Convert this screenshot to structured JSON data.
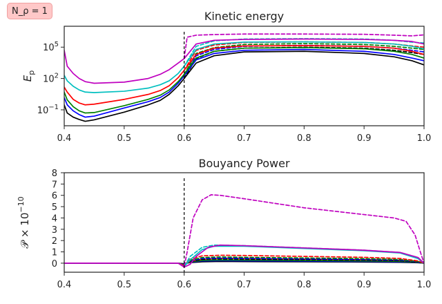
{
  "annotation": "N_ρ = 1",
  "colors": {
    "black": "#000000",
    "blue": "#0000ff",
    "green": "#008000",
    "red": "#ff0000",
    "cyan": "#00bfbf",
    "magenta": "#bf00bf"
  },
  "chart_data": [
    {
      "type": "line",
      "title": "Kinetic energy",
      "ylabel": "E_p",
      "xlim": [
        0.4,
        1.0
      ],
      "yscale": "log",
      "ylim": [
        0.003,
        10000000
      ],
      "xticks": [
        "0.4",
        "0.5",
        "0.6",
        "0.7",
        "0.8",
        "0.9",
        "1.0"
      ],
      "yticks": [
        {
          "value": 0.1,
          "base": "10",
          "exp": "−1"
        },
        {
          "value": 100,
          "base": "10",
          "exp": "2"
        },
        {
          "value": 100000,
          "base": "10",
          "exp": "5"
        }
      ],
      "vline": 0.6,
      "series": [
        {
          "color": "#000000",
          "style": "solid",
          "x": [
            0.4,
            0.405,
            0.415,
            0.425,
            0.435,
            0.45,
            0.5,
            0.54,
            0.56,
            0.575,
            0.59,
            0.6
          ],
          "y": [
            0.3,
            0.05,
            0.02,
            0.012,
            0.008,
            0.011,
            0.06,
            0.3,
            0.8,
            3,
            20,
            100
          ]
        },
        {
          "color": "#000000",
          "style": "solid",
          "x": [
            0.6,
            0.62,
            0.65,
            0.7,
            0.8,
            0.9,
            0.95,
            0.98,
            1.0
          ],
          "y": [
            100,
            3000,
            15000,
            35000,
            40000,
            25000,
            12000,
            5000,
            2000
          ]
        },
        {
          "color": "#000000",
          "style": "dashed",
          "x": [
            0.6,
            0.62,
            0.65,
            0.7,
            0.8,
            0.9,
            0.95,
            0.98,
            1.0
          ],
          "y": [
            100,
            8000,
            40000,
            80000,
            100000,
            80000,
            50000,
            30000,
            20000
          ]
        },
        {
          "color": "#0000ff",
          "style": "solid",
          "x": [
            0.4,
            0.405,
            0.415,
            0.425,
            0.435,
            0.45,
            0.5,
            0.54,
            0.56,
            0.575,
            0.59,
            0.6
          ],
          "y": [
            1.5,
            0.3,
            0.08,
            0.035,
            0.02,
            0.025,
            0.15,
            0.6,
            1.5,
            5,
            35,
            180
          ]
        },
        {
          "color": "#0000ff",
          "style": "solid",
          "x": [
            0.6,
            0.62,
            0.65,
            0.7,
            0.8,
            0.9,
            0.95,
            0.98,
            1.0
          ],
          "y": [
            180,
            6000,
            25000,
            50000,
            60000,
            40000,
            20000,
            9000,
            5000
          ]
        },
        {
          "color": "#0000ff",
          "style": "dashed",
          "x": [
            0.6,
            0.62,
            0.65,
            0.7,
            0.8,
            0.9,
            0.95,
            0.98,
            1.0
          ],
          "y": [
            180,
            15000,
            60000,
            120000,
            150000,
            120000,
            80000,
            50000,
            35000
          ]
        },
        {
          "color": "#008000",
          "style": "solid",
          "x": [
            0.4,
            0.405,
            0.415,
            0.425,
            0.435,
            0.45,
            0.5,
            0.54,
            0.56,
            0.575,
            0.59,
            0.6
          ],
          "y": [
            5,
            0.9,
            0.2,
            0.08,
            0.05,
            0.055,
            0.25,
            1,
            2.5,
            8,
            50,
            250
          ]
        },
        {
          "color": "#008000",
          "style": "solid",
          "x": [
            0.6,
            0.62,
            0.65,
            0.7,
            0.8,
            0.9,
            0.95,
            0.98,
            1.0
          ],
          "y": [
            250,
            9000,
            40000,
            80000,
            90000,
            70000,
            40000,
            20000,
            9000
          ]
        },
        {
          "color": "#008000",
          "style": "dashed",
          "x": [
            0.6,
            0.62,
            0.65,
            0.7,
            0.8,
            0.9,
            0.95,
            0.98,
            1.0
          ],
          "y": [
            250,
            25000,
            90000,
            180000,
            220000,
            180000,
            120000,
            80000,
            60000
          ]
        },
        {
          "color": "#ff0000",
          "style": "solid",
          "x": [
            0.4,
            0.405,
            0.415,
            0.425,
            0.435,
            0.45,
            0.5,
            0.54,
            0.56,
            0.575,
            0.59,
            0.6
          ],
          "y": [
            15,
            5,
            1,
            0.45,
            0.3,
            0.35,
            1,
            3,
            7,
            20,
            120,
            600
          ]
        },
        {
          "color": "#ff0000",
          "style": "solid",
          "x": [
            0.6,
            0.62,
            0.65,
            0.7,
            0.8,
            0.9,
            0.95,
            0.98,
            1.0
          ],
          "y": [
            600,
            20000,
            80000,
            130000,
            140000,
            120000,
            80000,
            40000,
            20000
          ]
        },
        {
          "color": "#ff0000",
          "style": "dashed",
          "x": [
            0.6,
            0.62,
            0.65,
            0.7,
            0.8,
            0.9,
            0.95,
            0.98,
            1.0
          ],
          "y": [
            600,
            50000,
            160000,
            280000,
            320000,
            280000,
            200000,
            130000,
            100000
          ]
        },
        {
          "color": "#00bfbf",
          "style": "solid",
          "x": [
            0.4,
            0.405,
            0.415,
            0.425,
            0.435,
            0.45,
            0.5,
            0.54,
            0.56,
            0.575,
            0.59,
            0.6
          ],
          "y": [
            200,
            60,
            18,
            8,
            5,
            4.5,
            6,
            12,
            25,
            60,
            300,
            1500
          ]
        },
        {
          "color": "#00bfbf",
          "style": "solid",
          "x": [
            0.6,
            0.62,
            0.65,
            0.7,
            0.8,
            0.9,
            0.95,
            0.98,
            1.0
          ],
          "y": [
            1500,
            60000,
            200000,
            300000,
            320000,
            280000,
            200000,
            120000,
            70000
          ]
        },
        {
          "color": "#00bfbf",
          "style": "dashed",
          "x": [
            0.6,
            0.62,
            0.65,
            0.7,
            0.8,
            0.9,
            0.95,
            0.98,
            1.0
          ],
          "y": [
            1500,
            120000,
            400000,
            600000,
            650000,
            600000,
            450000,
            300000,
            250000
          ]
        },
        {
          "color": "#bf00bf",
          "style": "solid",
          "x": [
            0.4,
            0.405,
            0.415,
            0.425,
            0.435,
            0.45,
            0.5,
            0.54,
            0.56,
            0.575,
            0.59,
            0.6
          ],
          "y": [
            50000,
            1500,
            300,
            100,
            50,
            35,
            45,
            100,
            250,
            700,
            3000,
            8000
          ]
        },
        {
          "color": "#bf00bf",
          "style": "solid",
          "x": [
            0.6,
            0.62,
            0.65,
            0.7,
            0.8,
            0.9,
            0.95,
            0.98,
            1.0
          ],
          "y": [
            8000,
            200000,
            450000,
            550000,
            600000,
            550000,
            450000,
            350000,
            200000
          ]
        },
        {
          "color": "#bf00bf",
          "style": "dashed",
          "x": [
            0.6,
            0.605,
            0.62,
            0.65,
            0.7,
            0.8,
            0.9,
            0.95,
            0.98,
            1.0
          ],
          "y": [
            8000,
            900000,
            1400000,
            1600000,
            1800000,
            1800000,
            1700000,
            1400000,
            1200000,
            1500000
          ]
        }
      ]
    },
    {
      "type": "line",
      "title": "Bouyancy Power",
      "ylabel": "𝒫 × 10",
      "ylabel_exp": "−10",
      "xlim": [
        0.4,
        1.0
      ],
      "ylim": [
        -0.8,
        8
      ],
      "xticks": [
        "0.4",
        "0.5",
        "0.6",
        "0.7",
        "0.8",
        "0.9",
        "1.0"
      ],
      "yticks": [
        "0",
        "1",
        "2",
        "3",
        "4",
        "5",
        "6",
        "7",
        "8"
      ],
      "vline": 0.6,
      "series": [
        {
          "color": "#000000",
          "style": "solid",
          "x": [
            0.4,
            0.59,
            0.6,
            0.61,
            0.63,
            0.66,
            0.7,
            0.8,
            0.9,
            0.96,
            0.99,
            1.0
          ],
          "y": [
            0,
            0,
            -0.05,
            0.05,
            0.12,
            0.15,
            0.14,
            0.12,
            0.1,
            0.08,
            0.04,
            0
          ]
        },
        {
          "color": "#0000ff",
          "style": "solid",
          "x": [
            0.4,
            0.59,
            0.6,
            0.61,
            0.63,
            0.66,
            0.7,
            0.8,
            0.9,
            0.96,
            0.99,
            1.0
          ],
          "y": [
            0,
            0,
            -0.08,
            0.08,
            0.2,
            0.22,
            0.21,
            0.18,
            0.15,
            0.12,
            0.06,
            0
          ]
        },
        {
          "color": "#008000",
          "style": "solid",
          "x": [
            0.4,
            0.59,
            0.6,
            0.61,
            0.63,
            0.66,
            0.7,
            0.8,
            0.9,
            0.96,
            0.99,
            1.0
          ],
          "y": [
            0,
            0,
            -0.1,
            0.1,
            0.25,
            0.28,
            0.27,
            0.24,
            0.2,
            0.16,
            0.08,
            0
          ]
        },
        {
          "color": "#ff0000",
          "style": "solid",
          "x": [
            0.4,
            0.59,
            0.6,
            0.61,
            0.63,
            0.66,
            0.7,
            0.8,
            0.9,
            0.96,
            0.99,
            1.0
          ],
          "y": [
            0,
            0,
            -0.15,
            0.15,
            0.35,
            0.42,
            0.4,
            0.35,
            0.3,
            0.25,
            0.12,
            0
          ]
        },
        {
          "color": "#000000",
          "style": "dashed",
          "x": [
            0.4,
            0.59,
            0.6,
            0.61,
            0.63,
            0.66,
            0.7,
            0.8,
            0.9,
            0.96,
            0.99,
            1.0
          ],
          "y": [
            0,
            0,
            -0.1,
            0.15,
            0.35,
            0.38,
            0.36,
            0.32,
            0.28,
            0.22,
            0.1,
            0
          ]
        },
        {
          "color": "#0000ff",
          "style": "dashed",
          "x": [
            0.4,
            0.59,
            0.6,
            0.61,
            0.63,
            0.66,
            0.7,
            0.8,
            0.9,
            0.96,
            0.99,
            1.0
          ],
          "y": [
            0,
            0,
            -0.12,
            0.2,
            0.42,
            0.45,
            0.43,
            0.38,
            0.33,
            0.27,
            0.12,
            0
          ]
        },
        {
          "color": "#008000",
          "style": "dashed",
          "x": [
            0.4,
            0.59,
            0.6,
            0.61,
            0.63,
            0.66,
            0.7,
            0.8,
            0.9,
            0.96,
            0.99,
            1.0
          ],
          "y": [
            0,
            0,
            -0.15,
            0.25,
            0.5,
            0.55,
            0.52,
            0.46,
            0.4,
            0.32,
            0.15,
            0
          ]
        },
        {
          "color": "#ff0000",
          "style": "dashed",
          "x": [
            0.4,
            0.59,
            0.6,
            0.61,
            0.63,
            0.66,
            0.7,
            0.8,
            0.9,
            0.96,
            0.99,
            1.0
          ],
          "y": [
            0,
            0,
            -0.2,
            0.35,
            0.65,
            0.7,
            0.68,
            0.6,
            0.52,
            0.42,
            0.2,
            0
          ]
        },
        {
          "color": "#00bfbf",
          "style": "solid",
          "x": [
            0.4,
            0.59,
            0.6,
            0.61,
            0.63,
            0.65,
            0.7,
            0.8,
            0.9,
            0.96,
            0.99,
            1.0
          ],
          "y": [
            0,
            0,
            -0.3,
            0.3,
            1.2,
            1.5,
            1.5,
            1.3,
            1.1,
            0.9,
            0.4,
            0
          ]
        },
        {
          "color": "#00bfbf",
          "style": "dashed",
          "x": [
            0.4,
            0.59,
            0.6,
            0.61,
            0.63,
            0.65,
            0.7,
            0.8,
            0.9,
            0.96,
            0.99,
            1.0
          ],
          "y": [
            0,
            0,
            -0.3,
            0.6,
            1.4,
            1.6,
            1.55,
            1.35,
            1.15,
            0.95,
            0.5,
            0
          ]
        },
        {
          "color": "#bf00bf",
          "style": "solid",
          "x": [
            0.4,
            0.59,
            0.6,
            0.61,
            0.62,
            0.64,
            0.66,
            0.7,
            0.8,
            0.9,
            0.96,
            0.99,
            1.0
          ],
          "y": [
            0,
            0,
            -0.35,
            -0.1,
            0.6,
            1.4,
            1.6,
            1.55,
            1.35,
            1.15,
            0.95,
            0.5,
            0
          ]
        },
        {
          "color": "#bf00bf",
          "style": "dashed",
          "x": [
            0.4,
            0.59,
            0.6,
            0.605,
            0.615,
            0.63,
            0.645,
            0.66,
            0.7,
            0.8,
            0.9,
            0.95,
            0.97,
            0.985,
            0.995,
            1.0
          ],
          "y": [
            0,
            0,
            -0.3,
            1.0,
            4.0,
            5.6,
            6.05,
            6.0,
            5.7,
            4.9,
            4.3,
            4.0,
            3.7,
            2.5,
            0.8,
            0
          ]
        }
      ]
    }
  ]
}
